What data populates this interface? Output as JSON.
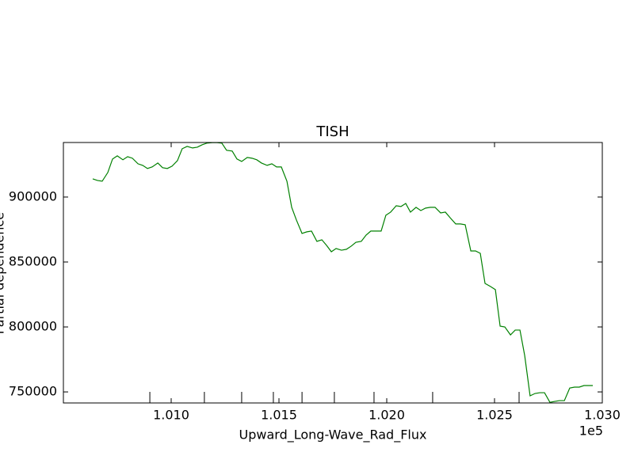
{
  "chart_data": {
    "type": "line",
    "title": "TISH",
    "x_label": "Upward_Long-Wave_Rad_Flux",
    "y_label": "Partial dependence",
    "x_offset_label": "1e5",
    "xlim": [
      1.005,
      1.03
    ],
    "ylim": [
      741500,
      942000
    ],
    "xticks": [
      {
        "value": 1.01,
        "label": "1.010"
      },
      {
        "value": 1.015,
        "label": "1.015"
      },
      {
        "value": 1.02,
        "label": "1.020"
      },
      {
        "value": 1.025,
        "label": "1.025"
      },
      {
        "value": 1.03,
        "label": "1.030"
      }
    ],
    "yticks": [
      750000,
      800000,
      850000,
      900000
    ],
    "grid": false,
    "color": "#008000",
    "deciles": [
      1.00901,
      1.01154,
      1.01327,
      1.01474,
      1.01607,
      1.01757,
      1.01941,
      1.02213,
      1.02614
    ],
    "x": [
      1.00636,
      1.00658,
      1.0068,
      1.00706,
      1.00728,
      1.0075,
      1.00776,
      1.00798,
      1.0082,
      1.00846,
      1.00868,
      1.0089,
      1.00912,
      1.00938,
      1.0096,
      1.00982,
      1.01004,
      1.01029,
      1.01051,
      1.01074,
      1.01099,
      1.01121,
      1.01143,
      1.01165,
      1.01191,
      1.01213,
      1.01235,
      1.01257,
      1.01283,
      1.01305,
      1.01327,
      1.01353,
      1.01375,
      1.01397,
      1.01419,
      1.01445,
      1.01467,
      1.01489,
      1.01511,
      1.01537,
      1.01559,
      1.01581,
      1.01607,
      1.01629,
      1.01651,
      1.01676,
      1.01699,
      1.01721,
      1.01743,
      1.01765,
      1.0179,
      1.01813,
      1.01835,
      1.01857,
      1.01882,
      1.01904,
      1.01926,
      1.01952,
      1.01974,
      1.01996,
      1.02018,
      1.02044,
      1.02066,
      1.02088,
      1.0211,
      1.02136,
      1.02158,
      1.0218,
      1.02202,
      1.02224,
      1.0225,
      1.02272,
      1.02294,
      1.0232,
      1.02342,
      1.02364,
      1.0239,
      1.02412,
      1.02434,
      1.02456,
      1.02482,
      1.02504,
      1.02526,
      1.02548,
      1.02574,
      1.02596,
      1.02618,
      1.0264,
      1.02665,
      1.02688,
      1.0271,
      1.02732,
      1.02757,
      1.02779,
      1.02801,
      1.02824,
      1.02849,
      1.02871,
      1.02893,
      1.02915,
      1.02938,
      1.02956
    ],
    "values": [
      914000,
      912800,
      912200,
      918900,
      929300,
      931700,
      928700,
      931100,
      929900,
      925600,
      924400,
      922000,
      923200,
      926200,
      922600,
      922000,
      923800,
      928000,
      937200,
      939000,
      937800,
      938400,
      940200,
      941500,
      941900,
      941900,
      941500,
      936000,
      935400,
      929300,
      927400,
      930500,
      929900,
      928700,
      926200,
      924400,
      925600,
      923200,
      923200,
      912200,
      892100,
      882300,
      872000,
      873200,
      873800,
      865900,
      867100,
      862800,
      857900,
      860400,
      859100,
      859800,
      862200,
      865200,
      865900,
      870700,
      873800,
      873800,
      873800,
      886000,
      888400,
      893300,
      892700,
      895100,
      888400,
      892100,
      889600,
      891500,
      892100,
      892100,
      887800,
      888400,
      884100,
      879300,
      879300,
      878700,
      858500,
      858500,
      856700,
      833500,
      831100,
      828700,
      800600,
      800000,
      793900,
      797600,
      797600,
      778000,
      747000,
      748800,
      749400,
      749400,
      742000,
      742700,
      743300,
      743300,
      753000,
      753700,
      753700,
      754900,
      754900,
      754900
    ]
  }
}
